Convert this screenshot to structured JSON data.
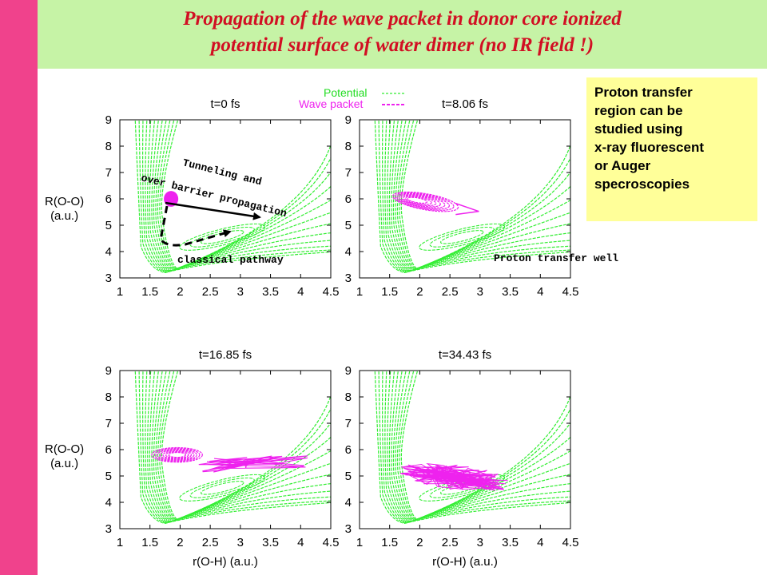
{
  "slide": {
    "title_line1": "Propagation of the wave packet in donor core ionized",
    "title_line2": "potential surface of water dimer (no IR field !)",
    "info_box_lines": [
      "Proton transfer",
      "region can be",
      "studied using",
      "x-ray fluorescent",
      "or Auger",
      "specroscopies"
    ],
    "colors": {
      "sidebar": "#f0428c",
      "title_bg": "#c6f3a6",
      "title_text": "#d10f23",
      "info_bg": "#ffff99",
      "potential": "#33ee33",
      "wave_packet": "#ee22ee"
    }
  },
  "legend": {
    "potential_label": "Potential",
    "wave_packet_label": "Wave packet"
  },
  "axes": {
    "ylabel_line1": "R(O-O)",
    "ylabel_line2": "(a.u.)",
    "xlabel": "r(O-H) (a.u.)",
    "x_ticks": [
      "1",
      "1.5",
      "2",
      "2.5",
      "3",
      "3.5",
      "4",
      "4.5"
    ],
    "y_ticks": [
      "3",
      "4",
      "5",
      "6",
      "7",
      "8",
      "9"
    ]
  },
  "annotations": {
    "tunneling_line1": "Tunneling and",
    "tunneling_line2": "over barrier propagation",
    "classical": "classical pathway",
    "proton_well": "Proton transfer well"
  },
  "chart_data": [
    {
      "type": "contour",
      "title": "t=0 fs",
      "xlim": [
        1,
        4.5
      ],
      "ylim": [
        3,
        9
      ],
      "wave_packet": {
        "shape": "blob",
        "center": [
          1.85,
          6.0
        ],
        "rx": 0.12,
        "ry": 0.3
      }
    },
    {
      "type": "contour",
      "title": "t=8.06 fs",
      "xlim": [
        1,
        4.5
      ],
      "ylim": [
        3,
        9
      ],
      "wave_packet": {
        "shape": "loop",
        "center": [
          2.1,
          5.95
        ],
        "rx": 0.55,
        "ry": 0.55
      }
    },
    {
      "type": "contour",
      "title": "t=16.85 fs",
      "xlim": [
        1,
        4.5
      ],
      "ylim": [
        3,
        9
      ],
      "wave_packet": {
        "shape": "loop-tail",
        "center": [
          1.95,
          5.8
        ],
        "rx": 0.42,
        "ry": 0.5
      }
    },
    {
      "type": "contour",
      "title": "t=34.43 fs",
      "xlim": [
        1,
        4.5
      ],
      "ylim": [
        3,
        9
      ],
      "wave_packet": {
        "shape": "spread",
        "center": [
          2.6,
          4.95
        ],
        "rx": 0.95,
        "ry": 0.65
      }
    }
  ]
}
